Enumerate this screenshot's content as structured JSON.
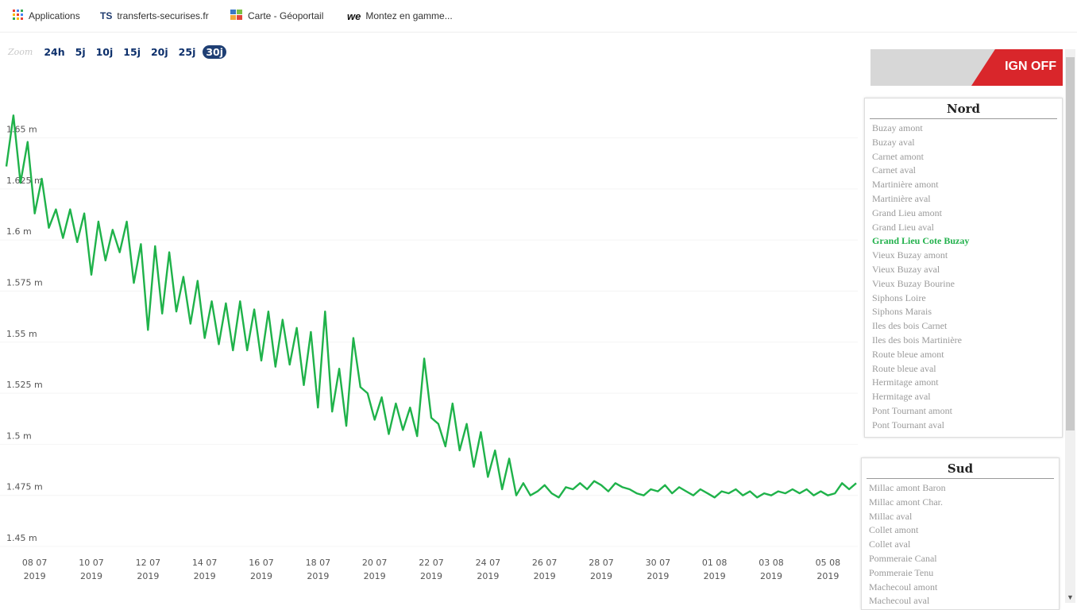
{
  "bookmarks": [
    {
      "icon": "apps-grid-icon",
      "label": "Applications"
    },
    {
      "icon_text": "TS",
      "label": "transferts-securises.fr"
    },
    {
      "icon": "geoportail-icon",
      "label": "Carte - Géoportail"
    },
    {
      "icon_text": "we",
      "label": "Montez en gamme..."
    }
  ],
  "zoom": {
    "label": "Zoom",
    "options": [
      "24h",
      "5j",
      "10j",
      "15j",
      "20j",
      "25j",
      "30j"
    ],
    "selected": "30j"
  },
  "banner": {
    "text": "IGN OFF",
    "color": "#d9262b"
  },
  "panels": {
    "nord": {
      "title": "Nord",
      "items": [
        "Buzay amont",
        "Buzay aval",
        "Carnet amont",
        "Carnet aval",
        "Martinière amont",
        "Martinière aval",
        "Grand Lieu amont",
        "Grand Lieu aval",
        "Grand Lieu Cote Buzay",
        "Vieux Buzay amont",
        "Vieux Buzay aval",
        "Vieux Buzay Bourine",
        "Siphons Loire",
        "Siphons Marais",
        "Iles des bois Carnet",
        "Iles des bois Martinière",
        "Route bleue amont",
        "Route bleue aval",
        "Hermitage amont",
        "Hermitage aval",
        "Pont Tournant amont",
        "Pont Tournant aval"
      ],
      "active": "Grand Lieu Cote Buzay"
    },
    "sud": {
      "title": "Sud",
      "items": [
        "Millac amont Baron",
        "Millac amont Char.",
        "Millac aval",
        "Collet amont",
        "Collet aval",
        "Pommeraie Canal",
        "Pommeraie Tenu",
        "Machecoul amont",
        "Machecoul aval"
      ]
    }
  },
  "chart_data": {
    "type": "line",
    "color": "#1fb24a",
    "y_ticks": [
      "1.45 m",
      "1.475 m",
      "1.5 m",
      "1.525 m",
      "1.55 m",
      "1.575 m",
      "1.6 m",
      "1.625 m",
      "1.65 m"
    ],
    "y_tick_values": [
      1.45,
      1.475,
      1.5,
      1.525,
      1.55,
      1.575,
      1.6,
      1.625,
      1.65
    ],
    "ylim": [
      1.45,
      1.665
    ],
    "x_ticks": [
      {
        "day": "08 07",
        "year": "2019"
      },
      {
        "day": "10 07",
        "year": "2019"
      },
      {
        "day": "12 07",
        "year": "2019"
      },
      {
        "day": "14 07",
        "year": "2019"
      },
      {
        "day": "16 07",
        "year": "2019"
      },
      {
        "day": "18 07",
        "year": "2019"
      },
      {
        "day": "20 07",
        "year": "2019"
      },
      {
        "day": "22 07",
        "year": "2019"
      },
      {
        "day": "24 07",
        "year": "2019"
      },
      {
        "day": "26 07",
        "year": "2019"
      },
      {
        "day": "28 07",
        "year": "2019"
      },
      {
        "day": "30 07",
        "year": "2019"
      },
      {
        "day": "01 08",
        "year": "2019"
      },
      {
        "day": "03 08",
        "year": "2019"
      },
      {
        "day": "05 08",
        "year": "2019"
      }
    ],
    "x_tick_dates": [
      "2019-07-08",
      "2019-07-10",
      "2019-07-12",
      "2019-07-14",
      "2019-07-16",
      "2019-07-18",
      "2019-07-20",
      "2019-07-22",
      "2019-07-24",
      "2019-07-26",
      "2019-07-28",
      "2019-07-30",
      "2019-08-01",
      "2019-08-03",
      "2019-08-05"
    ],
    "series": [
      {
        "x": [
          "2019-07-07T00:00",
          "2019-07-07T06:00",
          "2019-07-07T12:00",
          "2019-07-07T18:00",
          "2019-07-08T00:00",
          "2019-07-08T06:00",
          "2019-07-08T12:00",
          "2019-07-08T18:00",
          "2019-07-09T00:00",
          "2019-07-09T06:00",
          "2019-07-09T12:00",
          "2019-07-09T18:00",
          "2019-07-10T00:00",
          "2019-07-10T06:00",
          "2019-07-10T12:00",
          "2019-07-10T18:00",
          "2019-07-11T00:00",
          "2019-07-11T06:00",
          "2019-07-11T12:00",
          "2019-07-11T18:00",
          "2019-07-12T00:00",
          "2019-07-12T06:00",
          "2019-07-12T12:00",
          "2019-07-12T18:00",
          "2019-07-13T00:00",
          "2019-07-13T06:00",
          "2019-07-13T12:00",
          "2019-07-13T18:00",
          "2019-07-14T00:00",
          "2019-07-14T06:00",
          "2019-07-14T12:00",
          "2019-07-14T18:00",
          "2019-07-15T00:00",
          "2019-07-15T06:00",
          "2019-07-15T12:00",
          "2019-07-15T18:00",
          "2019-07-16T00:00",
          "2019-07-16T06:00",
          "2019-07-16T12:00",
          "2019-07-16T18:00",
          "2019-07-17T00:00",
          "2019-07-17T06:00",
          "2019-07-17T12:00",
          "2019-07-17T18:00",
          "2019-07-18T00:00",
          "2019-07-18T06:00",
          "2019-07-18T12:00",
          "2019-07-18T18:00",
          "2019-07-19T00:00",
          "2019-07-19T06:00",
          "2019-07-19T12:00",
          "2019-07-19T18:00",
          "2019-07-20T00:00",
          "2019-07-20T06:00",
          "2019-07-20T12:00",
          "2019-07-20T18:00",
          "2019-07-21T00:00",
          "2019-07-21T06:00",
          "2019-07-21T12:00",
          "2019-07-21T18:00",
          "2019-07-22T00:00",
          "2019-07-22T06:00",
          "2019-07-22T12:00",
          "2019-07-22T18:00",
          "2019-07-23T00:00",
          "2019-07-23T06:00",
          "2019-07-23T12:00",
          "2019-07-23T18:00",
          "2019-07-24T00:00",
          "2019-07-24T06:00",
          "2019-07-24T12:00",
          "2019-07-24T18:00",
          "2019-07-25T00:00",
          "2019-07-25T06:00",
          "2019-07-25T12:00",
          "2019-07-25T18:00",
          "2019-07-26T00:00",
          "2019-07-26T06:00",
          "2019-07-26T12:00",
          "2019-07-26T18:00",
          "2019-07-27T00:00",
          "2019-07-27T06:00",
          "2019-07-27T12:00",
          "2019-07-27T18:00",
          "2019-07-28T00:00",
          "2019-07-28T06:00",
          "2019-07-28T12:00",
          "2019-07-28T18:00",
          "2019-07-29T00:00",
          "2019-07-29T06:00",
          "2019-07-29T12:00",
          "2019-07-29T18:00",
          "2019-07-30T00:00",
          "2019-07-30T06:00",
          "2019-07-30T12:00",
          "2019-07-30T18:00",
          "2019-07-31T00:00",
          "2019-07-31T06:00",
          "2019-07-31T12:00",
          "2019-07-31T18:00",
          "2019-08-01T00:00",
          "2019-08-01T06:00",
          "2019-08-01T12:00",
          "2019-08-01T18:00",
          "2019-08-02T00:00",
          "2019-08-02T06:00",
          "2019-08-02T12:00",
          "2019-08-02T18:00",
          "2019-08-03T00:00",
          "2019-08-03T06:00",
          "2019-08-03T12:00",
          "2019-08-03T18:00",
          "2019-08-04T00:00",
          "2019-08-04T06:00",
          "2019-08-04T12:00",
          "2019-08-04T18:00",
          "2019-08-05T00:00",
          "2019-08-05T06:00",
          "2019-08-05T12:00",
          "2019-08-05T18:00",
          "2019-08-06T00:00"
        ],
        "values": [
          1.636,
          1.661,
          1.628,
          1.648,
          1.613,
          1.63,
          1.606,
          1.615,
          1.601,
          1.615,
          1.599,
          1.613,
          1.583,
          1.609,
          1.59,
          1.605,
          1.594,
          1.609,
          1.579,
          1.598,
          1.556,
          1.597,
          1.564,
          1.594,
          1.565,
          1.582,
          1.559,
          1.58,
          1.552,
          1.57,
          1.549,
          1.569,
          1.546,
          1.57,
          1.546,
          1.566,
          1.541,
          1.565,
          1.538,
          1.561,
          1.539,
          1.557,
          1.529,
          1.555,
          1.518,
          1.565,
          1.516,
          1.537,
          1.509,
          1.552,
          1.528,
          1.525,
          1.512,
          1.523,
          1.505,
          1.52,
          1.507,
          1.518,
          1.504,
          1.542,
          1.513,
          1.51,
          1.499,
          1.52,
          1.497,
          1.51,
          1.489,
          1.506,
          1.484,
          1.497,
          1.478,
          1.493,
          1.475,
          1.481,
          1.475,
          1.477,
          1.48,
          1.476,
          1.474,
          1.479,
          1.478,
          1.481,
          1.478,
          1.482,
          1.48,
          1.477,
          1.481,
          1.479,
          1.478,
          1.476,
          1.475,
          1.478,
          1.477,
          1.48,
          1.476,
          1.479,
          1.477,
          1.475,
          1.478,
          1.476,
          1.474,
          1.477,
          1.476,
          1.478,
          1.475,
          1.477,
          1.474,
          1.476,
          1.475,
          1.477,
          1.476,
          1.478,
          1.476,
          1.478,
          1.475,
          1.477,
          1.475,
          1.476,
          1.481,
          1.478,
          1.481
        ]
      }
    ]
  }
}
